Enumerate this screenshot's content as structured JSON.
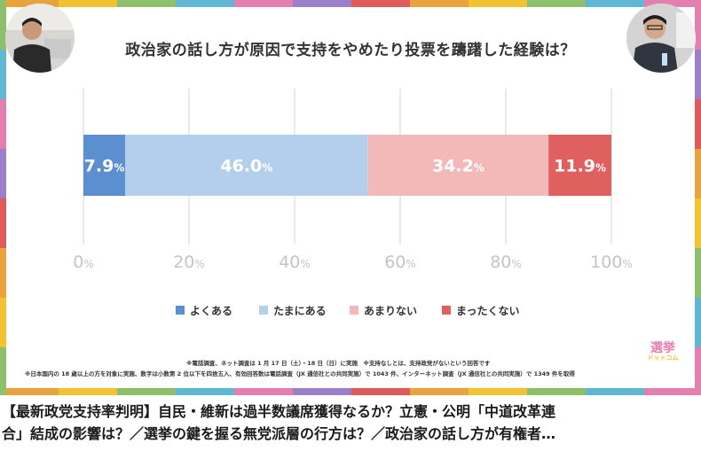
{
  "chart_data": {
    "type": "bar",
    "orientation": "horizontal-stacked",
    "title": "政治家の話し方が原因で支持をやめたり投票を躊躇した経験は？",
    "series": [
      {
        "name": "よくある",
        "value": 7.9,
        "label_num": "7.9",
        "color": "#5b8fd0"
      },
      {
        "name": "たまにある",
        "value": 46.0,
        "label_num": "46.0",
        "color": "#b4cfec"
      },
      {
        "name": "あまりない",
        "value": 34.2,
        "label_num": "34.2",
        "color": "#f3b9b9"
      },
      {
        "name": "まったくない",
        "value": 11.9,
        "label_num": "11.9",
        "color": "#e06060"
      }
    ],
    "percent_sign": "%",
    "xlim": [
      0,
      100
    ],
    "xticks": [
      0,
      20,
      40,
      60,
      80,
      100
    ],
    "tick_labels": [
      "0",
      "20",
      "40",
      "60",
      "80",
      "100"
    ],
    "grid": true,
    "legend_position": "bottom-center"
  },
  "notes": {
    "line1": "※電話調査、ネット調査は 1 月 17 日（土）・18 日（日）に実施　※支持なしとは、支持政党がないという回答です",
    "line2": "※日本国内の 18 歳以上の方を対象に実施、数字は小数第 2 位以下を四捨五入、有効回答数は電話調査（JX 通信社との共同実施）で 1043 件、インターネット調査（JX 通信社との共同実施）で 1349 件を取得"
  },
  "brand": {
    "line1": "選挙",
    "line2": "ドットコム"
  },
  "caption": {
    "line1": "【最新政党支持率判明】自民・維新は過半数議席獲得なるか？立憲・公明「中道改革連",
    "line2": "合」結成の影響は？／選挙の鍵を握る無党派層の行方は？／政治家の話し方が有権者…"
  },
  "frame_colors": [
    "#e8a33d",
    "#f2c230",
    "#8ec06c",
    "#5fb7d4",
    "#e57fb0",
    "#9b7fc8",
    "#e05a5a"
  ],
  "text_colors": {
    "bar_label": "#ffffff",
    "tick": "#c4c4c4",
    "legend": "#333333"
  }
}
